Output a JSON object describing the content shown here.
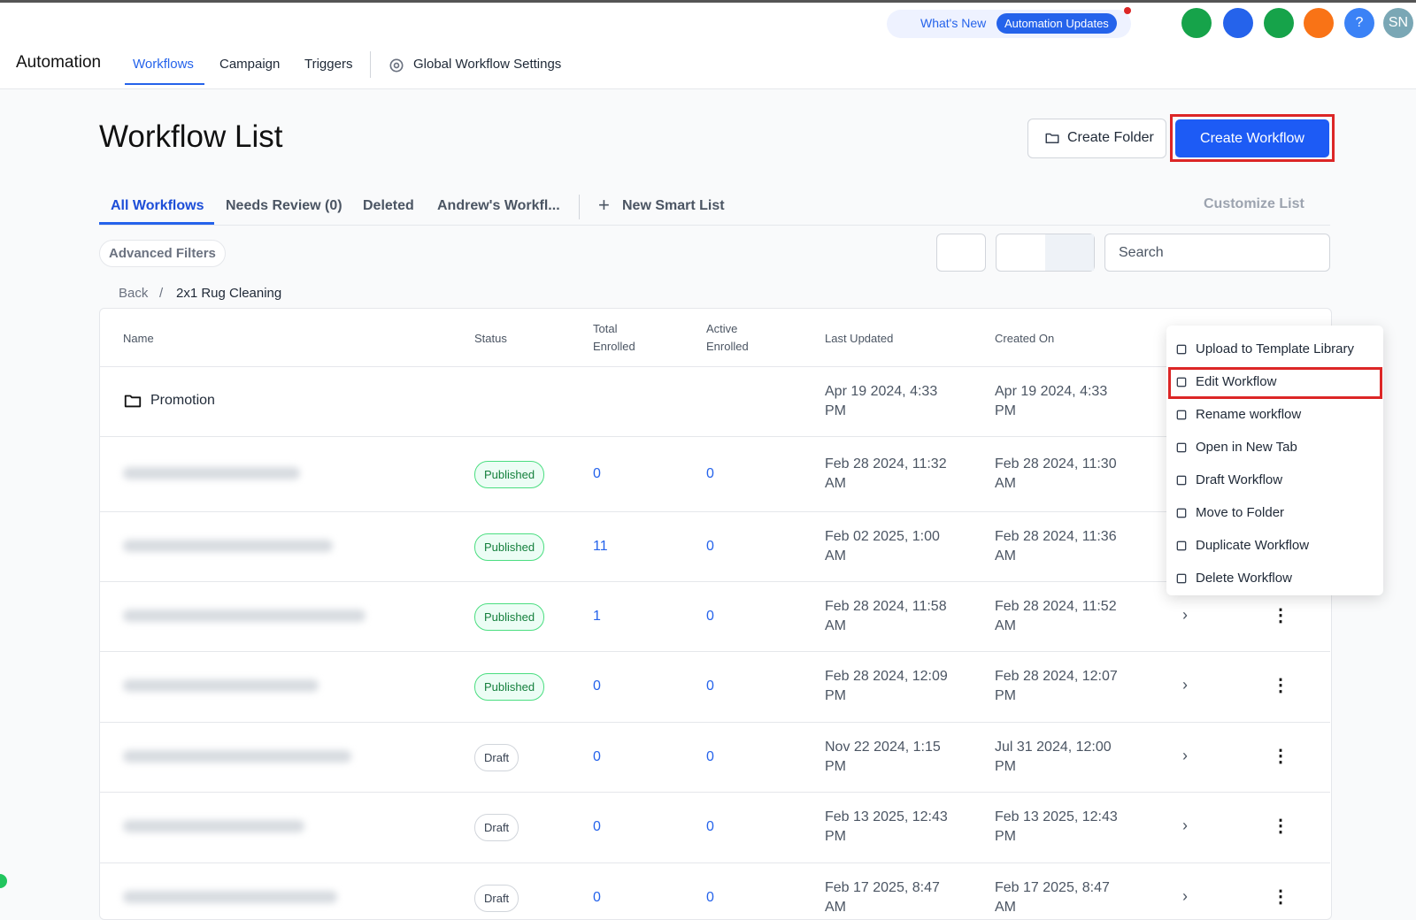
{
  "header": {
    "app_title": "Automation",
    "nav": [
      "Workflows",
      "Campaign",
      "Triggers",
      "Global Workflow Settings"
    ],
    "whats_new": "What's New",
    "updates_badge": "Automation Updates",
    "help": "?",
    "avatar": "SN"
  },
  "page": {
    "title": "Workflow List",
    "create_folder": "Create Folder",
    "create_workflow": "Create Workflow"
  },
  "tabs": [
    "All Workflows",
    "Needs Review (0)",
    "Deleted",
    "Andrew's Workfl...",
    "New Smart List"
  ],
  "customize": "Customize List",
  "filters": {
    "advanced": "Advanced Filters",
    "search": "Search"
  },
  "breadcrumb": {
    "back": "Back",
    "separator": "/",
    "current": "2x1 Rug Cleaning"
  },
  "table": {
    "columns": [
      "Name",
      "Status",
      "Total Enrolled",
      "Active Enrolled",
      "Last Updated",
      "Created On"
    ],
    "folder": {
      "name": "Promotion",
      "last_updated": "Apr 19 2024, 4:33 PM",
      "created_on": "Apr 19 2024, 4:33 PM"
    },
    "rows": [
      [
        "Published",
        "0",
        "0",
        "Feb 28 2024, 11:32 AM",
        "Feb 28 2024, 11:30 AM"
      ],
      [
        "Published",
        "11",
        "0",
        "Feb 02 2025, 1:00 AM",
        "Feb 28 2024, 11:36 AM"
      ],
      [
        "Published",
        "1",
        "0",
        "Feb 28 2024, 11:58 AM",
        "Feb 28 2024, 11:52 AM"
      ],
      [
        "Published",
        "0",
        "0",
        "Feb 28 2024, 12:09 PM",
        "Feb 28 2024, 12:07 PM"
      ],
      [
        "Draft",
        "0",
        "0",
        "Nov 22 2024, 1:15 PM",
        "Jul 31 2024, 12:00 PM"
      ],
      [
        "Draft",
        "0",
        "0",
        "Feb 13 2025, 12:43 PM",
        "Feb 13 2025, 12:43 PM"
      ],
      [
        "Draft",
        "0",
        "0",
        "Feb 17 2025, 8:47 AM",
        "Feb 17 2025, 8:47 AM"
      ]
    ]
  },
  "menu": [
    "Upload to Template Library",
    "Edit Workflow",
    "Rename workflow",
    "Open in New Tab",
    "Draft Workflow",
    "Move to Folder",
    "Duplicate Workflow",
    "Delete Workflow"
  ]
}
